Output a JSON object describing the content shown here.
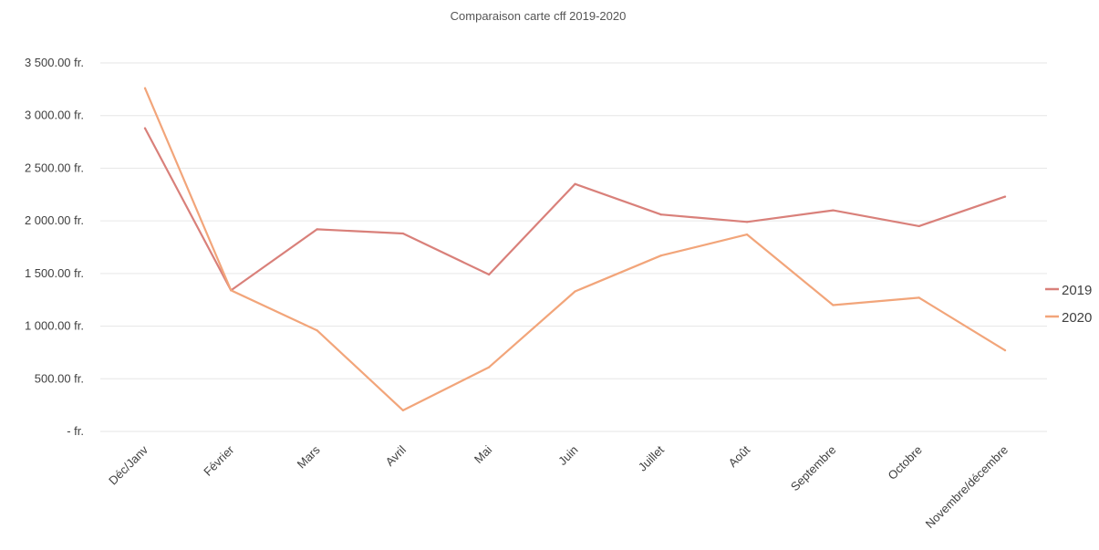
{
  "chart_data": {
    "type": "line",
    "title": "Comparaison carte cff 2019-2020",
    "xlabel": "",
    "ylabel": "",
    "categories": [
      "Déc/Janv",
      "Février",
      "Mars",
      "Avril",
      "Mai",
      "Juin",
      "Juillet",
      "Août",
      "Septembre",
      "Octobre",
      "Novembre/décembre"
    ],
    "ylim": [
      0,
      3500
    ],
    "y_ticks": [
      {
        "value": 3500,
        "label": "3 500.00 fr."
      },
      {
        "value": 3000,
        "label": "3 000.00 fr."
      },
      {
        "value": 2500,
        "label": "2 500.00 fr."
      },
      {
        "value": 2000,
        "label": "2 000.00 fr."
      },
      {
        "value": 1500,
        "label": "1 500.00 fr."
      },
      {
        "value": 1000,
        "label": "1 000.00 fr."
      },
      {
        "value": 500,
        "label": "500.00 fr."
      },
      {
        "value": 0,
        "label": "-   fr."
      }
    ],
    "grid": true,
    "legend": "right",
    "series": [
      {
        "name": "2019",
        "color": "#d9807a",
        "values": [
          2880,
          1340,
          1920,
          1880,
          1490,
          2350,
          2060,
          1990,
          2100,
          1950,
          2230
        ]
      },
      {
        "name": "2020",
        "color": "#f2a57a",
        "values": [
          3260,
          1340,
          960,
          200,
          610,
          1330,
          1670,
          1870,
          1200,
          1270,
          770
        ]
      }
    ]
  }
}
